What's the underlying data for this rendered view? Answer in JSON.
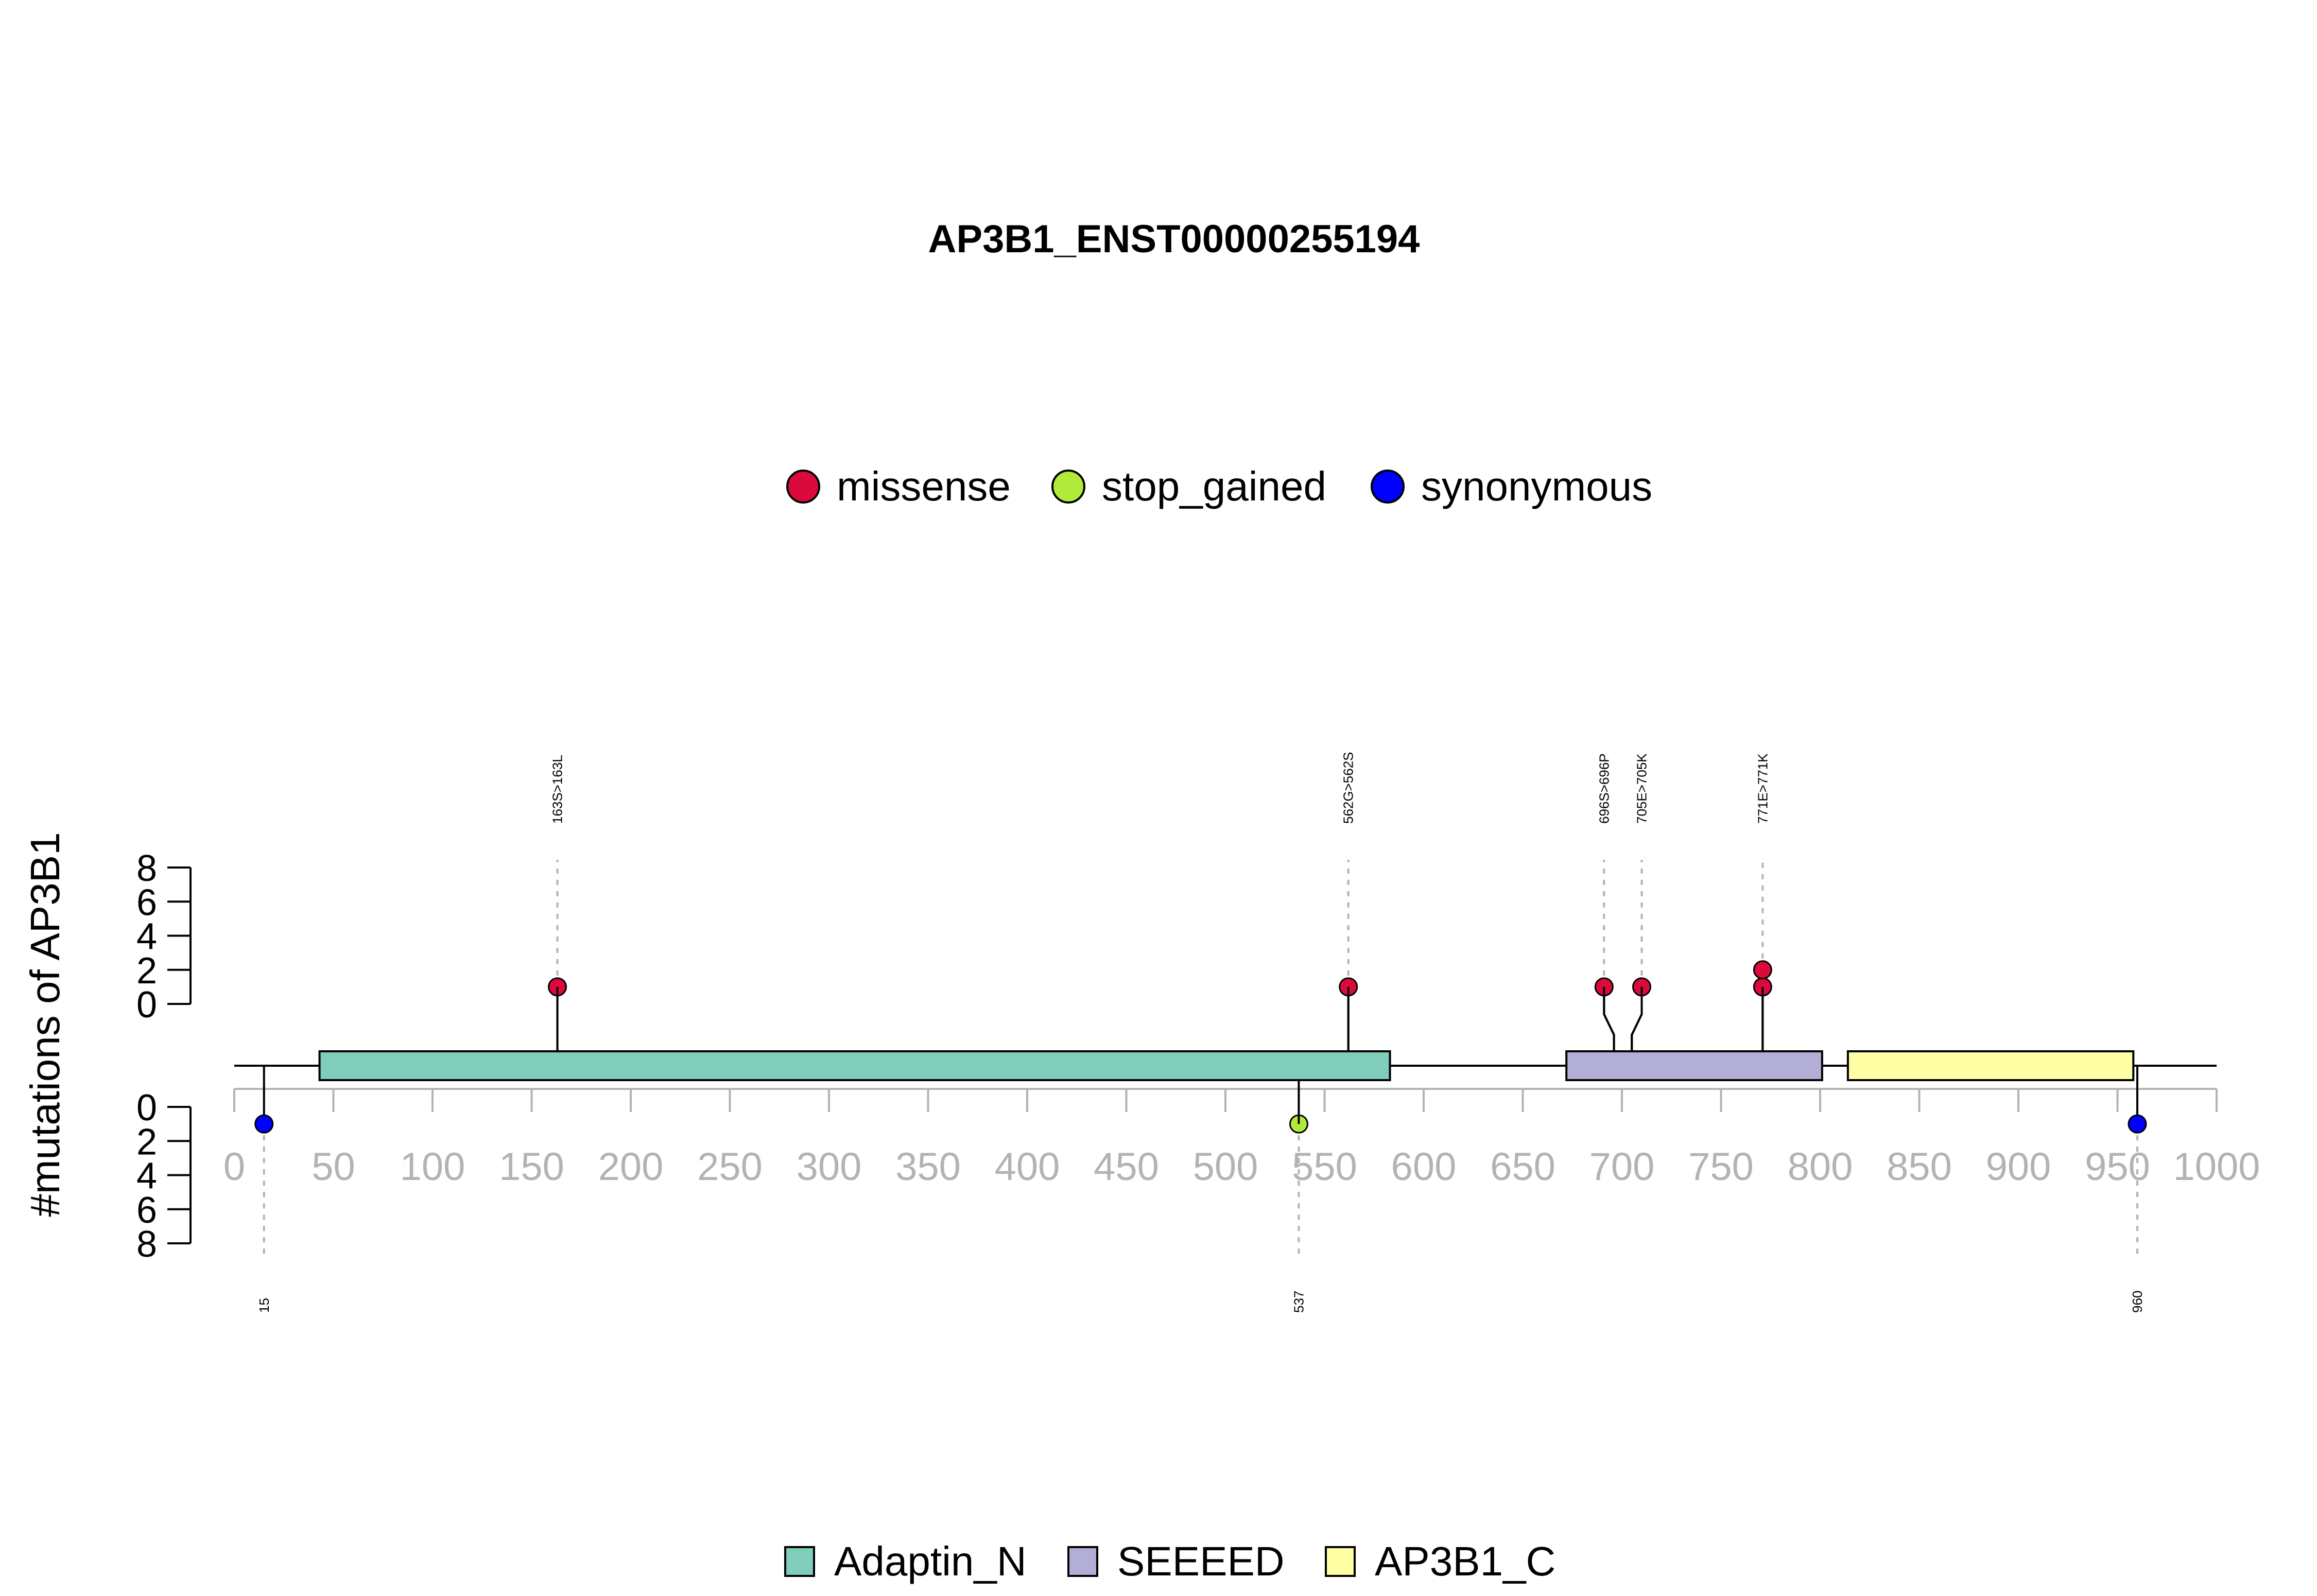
{
  "chart_data": {
    "type": "lollipop",
    "title": "AP3B1_ENST00000255194",
    "ylabel": "#mutations of AP3B1",
    "xlim": [
      0,
      1000
    ],
    "x_ticks": [
      0,
      50,
      100,
      150,
      200,
      250,
      300,
      350,
      400,
      450,
      500,
      550,
      600,
      650,
      700,
      750,
      800,
      850,
      900,
      950,
      1000
    ],
    "ylim_top": [
      0,
      8
    ],
    "ylim_bottom": [
      0,
      8
    ],
    "y_ticks": [
      0,
      2,
      4,
      6,
      8
    ],
    "mutation_legend": [
      {
        "label": "missense",
        "color": "#dc0a3c"
      },
      {
        "label": "stop_gained",
        "color": "#b2ea3a"
      },
      {
        "label": "synonymous",
        "color": "#0000ff"
      }
    ],
    "domains": [
      {
        "name": "Adaptin_N",
        "start": 43,
        "end": 583,
        "color": "#7fcdbb"
      },
      {
        "name": "SEEEED",
        "start": 672,
        "end": 801,
        "color": "#b3aed6"
      },
      {
        "name": "AP3B1_C",
        "start": 814,
        "end": 958,
        "color": "#ffffa6"
      }
    ],
    "mutations_top": [
      {
        "position": 163,
        "label": "163S>163L",
        "type": "missense",
        "count": 1,
        "display_x": 163
      },
      {
        "position": 562,
        "label": "562G>562S",
        "type": "missense",
        "count": 1,
        "display_x": 562
      },
      {
        "position": 696,
        "label": "696S>696P",
        "type": "missense",
        "count": 1,
        "display_x": 691
      },
      {
        "position": 705,
        "label": "705E>705K",
        "type": "missense",
        "count": 1,
        "display_x": 710
      },
      {
        "position": 771,
        "label": "771E>771K",
        "type": "missense",
        "count": 2,
        "display_x": 771
      }
    ],
    "mutations_bottom": [
      {
        "position": 15,
        "label": "15",
        "type": "synonymous",
        "count": 1
      },
      {
        "position": 537,
        "label": "537",
        "type": "stop_gained",
        "count": 1
      },
      {
        "position": 960,
        "label": "960",
        "type": "synonymous",
        "count": 1
      }
    ]
  }
}
